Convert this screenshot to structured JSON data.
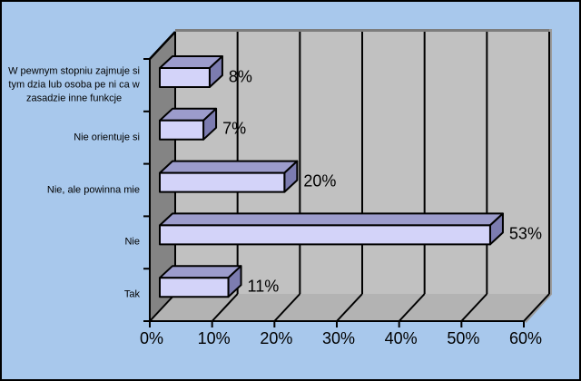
{
  "window": {
    "background_color": "#a8c8ec",
    "frame_border_color": "#000000"
  },
  "chart_data": {
    "type": "bar",
    "subtype": "horizontal-3d",
    "title": "",
    "xlabel": "",
    "ylabel": "",
    "grid": "vertical gridlines on back wall and floor",
    "legend": "none",
    "categories_top_to_bottom": [
      {
        "label_lines": [
          "W pewnym stopniu zajmuje si",
          "tym dzia lub osoba pe ni ca w",
          "zasadzie inne funkcje"
        ],
        "value": 8,
        "value_label": "8%"
      },
      {
        "label_lines": [
          "Nie orientuje si"
        ],
        "value": 7,
        "value_label": "7%"
      },
      {
        "label_lines": [
          "Nie, ale powinna mie"
        ],
        "value": 20,
        "value_label": "20%"
      },
      {
        "label_lines": [
          "Nie"
        ],
        "value": 53,
        "value_label": "53%"
      },
      {
        "label_lines": [
          "Tak"
        ],
        "value": 11,
        "value_label": "11%"
      }
    ],
    "x_axis": {
      "min": 0,
      "max": 60,
      "step": 10,
      "tick_labels": [
        "0%",
        "10%",
        "20%",
        "30%",
        "40%",
        "50%",
        "60%"
      ]
    },
    "colors": {
      "bar_front": "#d3d3f9",
      "bar_top": "#9c9ccc",
      "bar_side": "#7c7cb0",
      "back_wall": "#c1c1c1",
      "side_wall": "#848484",
      "floor": "#b3b3b3",
      "wall_top_edge": "#7d7d7d",
      "wall_right_edge": "#9c9c9c",
      "gridline": "#000000",
      "axis": "#000000",
      "text": "#000000"
    }
  }
}
